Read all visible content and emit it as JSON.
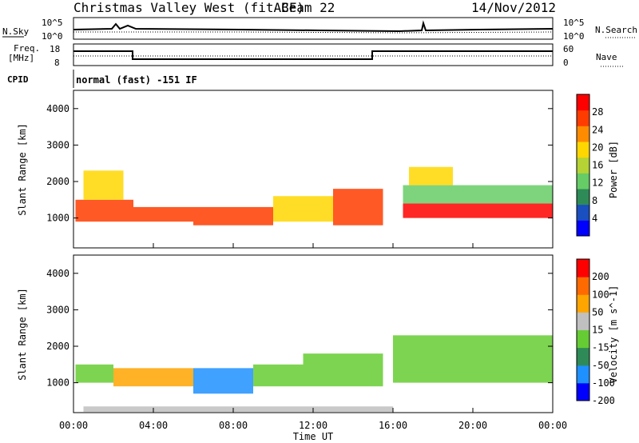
{
  "header": {
    "station": "Christmas Valley West (fitACF)",
    "beam": "Beam 22",
    "date": "14/Nov/2012"
  },
  "strip_panels": {
    "nsky_label": "N.Sky",
    "nsky_ticks": [
      "10^5",
      "10^0"
    ],
    "nsearch_label": "N.Search",
    "nsearch_ticks": [
      "10^5",
      "10^0"
    ],
    "freq_label_line1": "Freq.",
    "freq_label_line2": "[MHz]",
    "freq_ticks": [
      "18",
      "8"
    ],
    "nave_label": "Nave",
    "nave_ticks": [
      "60",
      "0"
    ],
    "cpid_label": "CPID",
    "cpid_value": "normal (fast) -151 IF"
  },
  "x_axis": {
    "label": "Time UT",
    "ticks": [
      "00:00",
      "04:00",
      "08:00",
      "12:00",
      "16:00",
      "20:00",
      "00:00"
    ]
  },
  "chart_data": [
    {
      "type": "heatmap",
      "name": "power",
      "ylabel": "Slant Range [km]",
      "yticks": [
        "1000",
        "2000",
        "3000",
        "4000"
      ],
      "ylim": [
        180,
        4500
      ],
      "xlim_hours": [
        0,
        24
      ],
      "colorbar": {
        "label": "Power [dB]",
        "ticks": [
          "4",
          "8",
          "12",
          "16",
          "20",
          "24",
          "28"
        ],
        "range": [
          0,
          30
        ],
        "colors": [
          "#0000ff",
          "#1a4fbf",
          "#2e8b57",
          "#66cc66",
          "#b5d334",
          "#ffd700",
          "#ff8c00",
          "#ff3c00",
          "#ff0000"
        ]
      },
      "bands": [
        {
          "t0": 0.1,
          "t1": 3.0,
          "r0": 900,
          "r1": 1500,
          "level": 26
        },
        {
          "t0": 0.5,
          "t1": 2.5,
          "r0": 1500,
          "r1": 2300,
          "level": 18
        },
        {
          "t0": 3.0,
          "t1": 6.0,
          "r0": 900,
          "r1": 1300,
          "level": 24
        },
        {
          "t0": 6.0,
          "t1": 10.0,
          "r0": 800,
          "r1": 1300,
          "level": 24
        },
        {
          "t0": 10.0,
          "t1": 13.0,
          "r0": 900,
          "r1": 1600,
          "level": 18
        },
        {
          "t0": 13.0,
          "t1": 15.5,
          "r0": 800,
          "r1": 1800,
          "level": 24
        },
        {
          "t0": 16.5,
          "t1": 24.0,
          "r0": 1000,
          "r1": 1400,
          "level": 28
        },
        {
          "t0": 16.5,
          "t1": 24.0,
          "r0": 1400,
          "r1": 1900,
          "level": 12
        },
        {
          "t0": 16.8,
          "t1": 19.0,
          "r0": 1900,
          "r1": 2400,
          "level": 18
        }
      ]
    },
    {
      "type": "heatmap",
      "name": "velocity",
      "ylabel": "Slant Range [km]",
      "yticks": [
        "1000",
        "2000",
        "3000",
        "4000"
      ],
      "ylim": [
        180,
        4500
      ],
      "xlim_hours": [
        0,
        24
      ],
      "colorbar": {
        "label": "Velocity [m s^-1]",
        "ticks": [
          "200",
          "100",
          "50",
          "15",
          "-15",
          "-50",
          "-100",
          "-200"
        ],
        "range": [
          -250,
          250
        ],
        "colors": [
          "#0000ff",
          "#1e90ff",
          "#2e8b57",
          "#66cc33",
          "#c0c0c0",
          "#ffa500",
          "#ff6a00",
          "#ff0000"
        ]
      },
      "bands": [
        {
          "t0": 0.1,
          "t1": 2.0,
          "r0": 1000,
          "r1": 1500,
          "level": 0
        },
        {
          "t0": 2.0,
          "t1": 6.0,
          "r0": 900,
          "r1": 1400,
          "level": -120
        },
        {
          "t0": 6.0,
          "t1": 9.0,
          "r0": 700,
          "r1": 1400,
          "level": 150
        },
        {
          "t0": 9.0,
          "t1": 11.5,
          "r0": 900,
          "r1": 1500,
          "level": 60
        },
        {
          "t0": 11.5,
          "t1": 15.5,
          "r0": 900,
          "r1": 1800,
          "level": 40
        },
        {
          "t0": 16.0,
          "t1": 24.0,
          "r0": 1000,
          "r1": 2300,
          "level": 0
        },
        {
          "t0": 0.5,
          "t1": 16.0,
          "r0": 200,
          "r1": 350,
          "level": -60
        }
      ]
    }
  ],
  "colors": {
    "axis": "#000000",
    "background": "#ffffff"
  }
}
